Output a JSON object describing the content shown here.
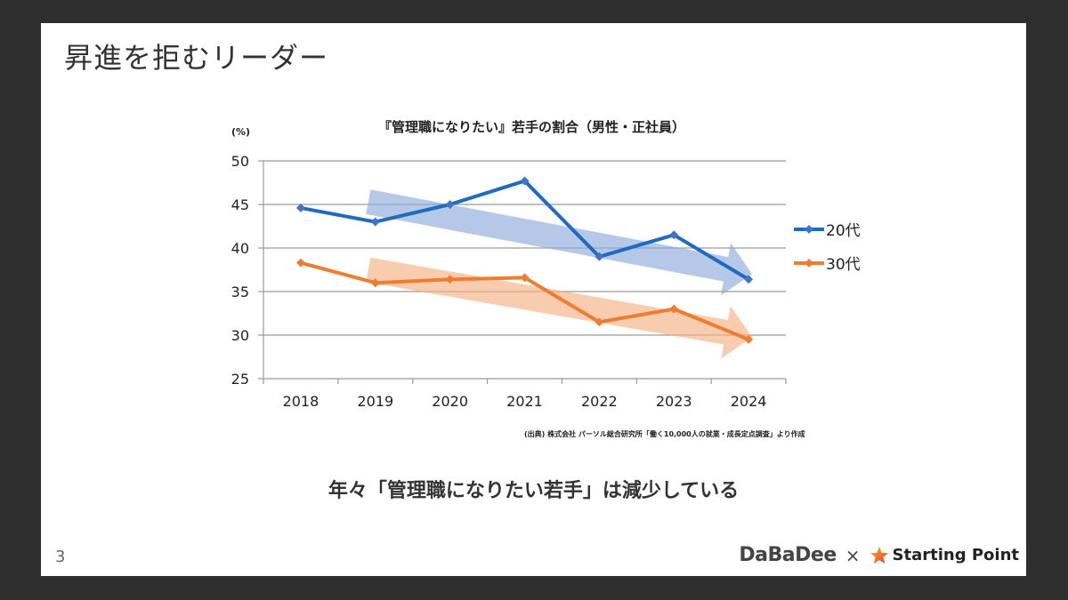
{
  "slide": {
    "title": "昇進を拒むリーダー",
    "message": "年々「管理職になりたい若手」は減少している",
    "source": "(出典) 株式会社 パーソル総合研究所「働く10,000人の就業・成長定点調査」より作成",
    "page_number": "3",
    "logo": {
      "left": "DaBaDee",
      "separator": "×",
      "right": "Starting Point"
    }
  },
  "chart_data": {
    "type": "line",
    "title": "『管理職になりたい』若手の割合（男性・正社員）",
    "ylabel": "(%)",
    "xlabel": "",
    "categories": [
      "2018",
      "2019",
      "2020",
      "2021",
      "2022",
      "2023",
      "2024"
    ],
    "series": [
      {
        "name": "20代",
        "color": "#1f6bc1",
        "values": [
          44.6,
          43.0,
          45.0,
          47.7,
          39.0,
          41.5,
          36.4
        ]
      },
      {
        "name": "30代",
        "color": "#ed7d31",
        "values": [
          38.3,
          36.0,
          36.4,
          36.6,
          31.5,
          33.0,
          29.5
        ]
      }
    ],
    "ylim": [
      25,
      50
    ],
    "yticks": [
      25,
      30,
      35,
      40,
      45,
      50
    ],
    "grid": true,
    "legend": "right",
    "annotations": [
      {
        "type": "trend-arrow",
        "series": "20代",
        "color": "#8faadc",
        "from": [
          "2019",
          45.3
        ],
        "to": [
          "2024",
          37.0
        ]
      },
      {
        "type": "trend-arrow",
        "series": "30代",
        "color": "#f4b183",
        "from": [
          "2019",
          37.5
        ],
        "to": [
          "2024",
          29.8
        ]
      }
    ]
  }
}
